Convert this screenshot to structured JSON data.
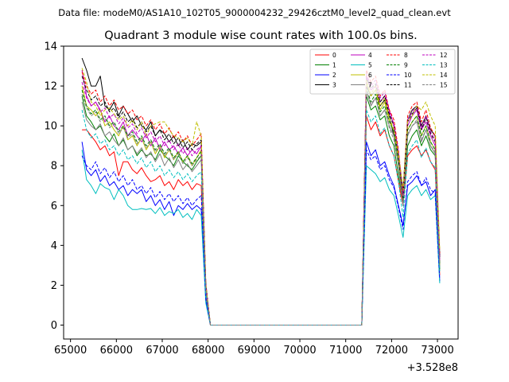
{
  "chart_data": {
    "type": "line",
    "suptitle": "Data file: modeM0/AS1A10_102T05_9000004232_29426cztM0_level2_quad_clean.evt",
    "title": "Quadrant 3 module wise count rates with 100.0s bins.",
    "xlabel": "",
    "ylabel": "",
    "x_offset_label": "+3.528e8",
    "xlim": [
      64850,
      73450
    ],
    "ylim": [
      -0.7,
      14
    ],
    "x_ticks": [
      65000,
      66000,
      67000,
      68000,
      69000,
      70000,
      71000,
      72000,
      73000
    ],
    "x_tick_labels": [
      "65000",
      "66000",
      "67000",
      "68000",
      "69000",
      "70000",
      "71000",
      "72000",
      "73000"
    ],
    "y_ticks": [
      0,
      2,
      4,
      6,
      8,
      10,
      12,
      14
    ],
    "y_tick_labels": [
      "0",
      "2",
      "4",
      "6",
      "8",
      "10",
      "12",
      "14"
    ],
    "legend_position": "top-right",
    "x_seg1": [
      65250,
      65350,
      65450,
      65550,
      65650,
      65750,
      65850,
      65950,
      66050,
      66150,
      66250,
      66350,
      66450,
      66550,
      66650,
      66750,
      66850,
      66950,
      67050,
      67150,
      67250,
      67350,
      67450,
      67550,
      67650,
      67750,
      67850,
      67950,
      68050
    ],
    "x_gap": [
      68150,
      71350
    ],
    "x_seg2": [
      71450,
      71550,
      71650,
      71750,
      71850,
      71950,
      72050,
      72150,
      72250,
      72350,
      72450,
      72550,
      72650,
      72750,
      72850,
      72950,
      73050
    ],
    "series": [
      {
        "name": "0",
        "color": "#ff0000",
        "dash": "solid",
        "seg1": [
          9.8,
          9.8,
          9.5,
          9.2,
          8.8,
          9.0,
          8.5,
          8.7,
          7.5,
          8.2,
          8.2,
          7.8,
          7.6,
          7.9,
          7.5,
          7.2,
          7.3,
          7.5,
          7.0,
          7.2,
          6.8,
          7.3,
          7.0,
          7.2,
          6.8,
          7.1,
          7.0,
          1.5,
          0
        ],
        "seg2": [
          10.5,
          9.8,
          10.2,
          9.5,
          9.8,
          9.0,
          8.5,
          7.2,
          6.0,
          8.5,
          8.8,
          9.0,
          8.5,
          8.8,
          8.2,
          7.8,
          2.5
        ]
      },
      {
        "name": "1",
        "color": "#008000",
        "dash": "solid",
        "seg1": [
          11.5,
          10.5,
          10.2,
          9.8,
          10.0,
          9.5,
          9.2,
          9.6,
          9.0,
          9.3,
          8.8,
          9.0,
          8.5,
          8.8,
          8.5,
          8.6,
          8.3,
          8.8,
          8.5,
          8.3,
          8.0,
          8.5,
          8.2,
          8.0,
          7.8,
          8.2,
          8.5,
          1.8,
          0
        ],
        "seg2": [
          11.5,
          10.8,
          11.0,
          10.3,
          10.5,
          9.5,
          9.0,
          7.5,
          6.2,
          9.0,
          9.5,
          9.8,
          9.0,
          9.5,
          8.8,
          8.5,
          2.8
        ]
      },
      {
        "name": "2",
        "color": "#0000ff",
        "dash": "solid",
        "seg1": [
          9.2,
          7.8,
          7.5,
          7.8,
          7.2,
          7.5,
          7.0,
          7.2,
          6.8,
          7.0,
          6.5,
          6.8,
          6.6,
          6.8,
          6.2,
          6.5,
          6.0,
          6.3,
          5.8,
          6.2,
          5.5,
          6.0,
          5.8,
          6.1,
          5.8,
          6.0,
          5.8,
          1.2,
          0
        ],
        "seg2": [
          9.2,
          8.5,
          8.8,
          8.0,
          8.2,
          7.5,
          7.0,
          6.0,
          5.0,
          7.0,
          7.2,
          7.5,
          7.0,
          7.2,
          6.5,
          6.8,
          2.2
        ]
      },
      {
        "name": "3",
        "color": "#000000",
        "dash": "solid",
        "seg1": [
          13.4,
          12.8,
          12.0,
          12.0,
          12.5,
          11.0,
          10.8,
          11.2,
          10.5,
          11.0,
          10.6,
          10.2,
          10.5,
          10.0,
          9.8,
          10.2,
          9.5,
          9.8,
          9.6,
          9.2,
          9.5,
          9.0,
          9.3,
          8.8,
          9.1,
          9.0,
          9.2,
          2.0,
          0
        ],
        "seg2": [
          12.0,
          11.5,
          11.8,
          11.0,
          11.3,
          10.5,
          9.5,
          8.5,
          6.8,
          10.3,
          10.8,
          11.0,
          10.0,
          10.5,
          9.8,
          9.5,
          3.5
        ]
      },
      {
        "name": "4",
        "color": "#bf00bf",
        "dash": "solid",
        "seg1": [
          12.8,
          11.5,
          11.0,
          11.2,
          10.8,
          10.2,
          10.5,
          10.0,
          9.8,
          10.2,
          9.5,
          9.8,
          9.5,
          9.2,
          9.6,
          9.0,
          9.4,
          8.8,
          9.2,
          8.8,
          9.0,
          8.6,
          8.9,
          8.5,
          8.8,
          8.6,
          9.0,
          1.9,
          0
        ],
        "seg2": [
          12.5,
          11.8,
          12.0,
          11.2,
          11.5,
          10.8,
          10.0,
          8.5,
          6.5,
          10.0,
          10.5,
          10.8,
          9.8,
          10.2,
          9.5,
          9.0,
          3.2
        ]
      },
      {
        "name": "5",
        "color": "#00bfbf",
        "dash": "solid",
        "seg1": [
          8.8,
          7.3,
          7.0,
          6.6,
          7.1,
          6.9,
          6.8,
          6.3,
          6.8,
          6.5,
          6.0,
          5.8,
          5.8,
          5.85,
          5.8,
          5.85,
          5.6,
          5.9,
          5.5,
          5.7,
          5.6,
          5.8,
          5.4,
          5.6,
          5.3,
          5.8,
          5.5,
          1.1,
          0
        ],
        "seg2": [
          8.0,
          7.8,
          7.6,
          7.2,
          7.4,
          6.8,
          6.5,
          5.5,
          4.4,
          6.5,
          6.8,
          7.0,
          6.5,
          6.8,
          6.3,
          6.5,
          2.1
        ]
      },
      {
        "name": "6",
        "color": "#bfbf00",
        "dash": "solid",
        "seg1": [
          12.0,
          11.0,
          10.8,
          10.5,
          10.8,
          10.0,
          10.2,
          9.8,
          9.5,
          10.0,
          9.3,
          9.5,
          9.0,
          9.4,
          8.8,
          9.2,
          8.6,
          9.0,
          8.4,
          8.8,
          8.3,
          8.7,
          8.2,
          8.5,
          8.0,
          8.4,
          8.8,
          1.8,
          0
        ],
        "seg2": [
          12.2,
          11.5,
          11.8,
          10.8,
          11.2,
          10.2,
          9.8,
          8.2,
          6.3,
          9.8,
          10.2,
          10.5,
          9.5,
          10.0,
          9.2,
          8.8,
          3.0
        ]
      },
      {
        "name": "7",
        "color": "#808080",
        "dash": "solid",
        "seg1": [
          11.2,
          10.3,
          10.0,
          9.8,
          10.1,
          9.5,
          9.7,
          9.3,
          9.0,
          9.4,
          8.8,
          9.0,
          8.6,
          8.9,
          8.4,
          8.7,
          8.2,
          8.6,
          8.0,
          8.4,
          7.9,
          8.3,
          7.8,
          8.1,
          7.7,
          8.0,
          8.3,
          1.7,
          0
        ],
        "seg2": [
          11.8,
          11.0,
          11.4,
          10.5,
          10.8,
          10.0,
          9.5,
          8.0,
          6.0,
          9.5,
          10.0,
          10.2,
          9.2,
          9.8,
          9.0,
          8.6,
          2.9
        ]
      },
      {
        "name": "8",
        "color": "#ff0000",
        "dash": "dashed",
        "seg1": [
          12.7,
          12.0,
          11.6,
          11.8,
          11.2,
          11.5,
          11.0,
          11.3,
          10.8,
          11.0,
          10.6,
          10.8,
          10.3,
          10.5,
          10.0,
          10.3,
          9.8,
          10.1,
          9.6,
          9.9,
          9.4,
          9.7,
          9.2,
          9.5,
          9.0,
          9.3,
          9.6,
          2.1,
          0
        ],
        "seg2": [
          12.8,
          12.2,
          12.5,
          11.5,
          11.8,
          10.8,
          10.3,
          8.8,
          6.6,
          10.5,
          11.0,
          11.2,
          10.2,
          10.8,
          9.9,
          9.5,
          3.6
        ]
      },
      {
        "name": "9",
        "color": "#008000",
        "dash": "dashed",
        "seg1": [
          11.8,
          11.0,
          10.6,
          10.8,
          10.3,
          10.5,
          10.0,
          10.2,
          9.7,
          10.0,
          9.5,
          9.7,
          9.2,
          9.5,
          9.0,
          9.3,
          8.8,
          9.1,
          8.6,
          8.9,
          8.4,
          8.7,
          8.2,
          8.5,
          8.1,
          8.4,
          8.7,
          1.8,
          0
        ],
        "seg2": [
          11.9,
          11.2,
          11.6,
          10.7,
          11.0,
          10.2,
          9.7,
          8.3,
          6.2,
          9.8,
          10.2,
          10.5,
          9.5,
          10.0,
          9.2,
          8.8,
          3.1
        ]
      },
      {
        "name": "10",
        "color": "#0000ff",
        "dash": "dashed",
        "seg1": [
          8.5,
          8.0,
          7.8,
          8.2,
          7.6,
          7.9,
          7.4,
          7.7,
          7.2,
          7.5,
          7.0,
          7.3,
          6.8,
          7.0,
          6.6,
          6.9,
          6.4,
          6.7,
          6.3,
          6.6,
          6.2,
          6.5,
          6.1,
          6.4,
          6.0,
          6.3,
          6.5,
          1.3,
          0
        ],
        "seg2": [
          8.8,
          8.3,
          8.5,
          7.8,
          8.0,
          7.3,
          6.9,
          5.9,
          4.8,
          7.2,
          7.5,
          7.7,
          7.0,
          7.4,
          6.8,
          6.6,
          2.3
        ]
      },
      {
        "name": "11",
        "color": "#000000",
        "dash": "dashed",
        "seg1": [
          12.5,
          11.8,
          11.3,
          11.5,
          11.0,
          11.2,
          10.7,
          10.9,
          10.4,
          10.7,
          10.2,
          10.4,
          9.9,
          10.2,
          9.7,
          10.0,
          9.5,
          9.8,
          9.3,
          9.6,
          9.1,
          9.4,
          8.9,
          9.2,
          8.8,
          9.1,
          9.3,
          2.0,
          0
        ],
        "seg2": [
          12.4,
          11.9,
          12.1,
          11.2,
          11.5,
          10.6,
          10.0,
          8.6,
          6.4,
          10.2,
          10.6,
          10.9,
          9.8,
          10.4,
          9.6,
          9.2,
          3.4
        ]
      },
      {
        "name": "12",
        "color": "#bf00bf",
        "dash": "dashed",
        "seg1": [
          12.2,
          11.4,
          11.0,
          11.2,
          10.7,
          10.9,
          10.4,
          10.6,
          10.1,
          10.4,
          9.9,
          10.1,
          9.6,
          9.9,
          9.4,
          9.7,
          9.2,
          9.5,
          9.0,
          9.3,
          8.8,
          9.1,
          8.6,
          8.9,
          8.5,
          8.8,
          9.0,
          1.9,
          0
        ],
        "seg2": [
          12.6,
          12.0,
          12.3,
          11.4,
          11.7,
          10.7,
          10.1,
          8.7,
          6.5,
          10.3,
          10.7,
          11.0,
          9.9,
          10.5,
          9.7,
          9.3,
          3.3
        ]
      },
      {
        "name": "13",
        "color": "#00bfbf",
        "dash": "dashed",
        "seg1": [
          10.8,
          9.8,
          9.4,
          9.6,
          9.1,
          9.3,
          8.8,
          9.0,
          8.5,
          8.8,
          8.3,
          8.5,
          8.1,
          8.4,
          7.9,
          8.2,
          7.7,
          8.0,
          7.5,
          7.8,
          7.4,
          7.7,
          7.3,
          7.6,
          7.2,
          7.5,
          7.7,
          1.6,
          0
        ],
        "seg2": [
          10.8,
          10.2,
          10.5,
          9.6,
          9.9,
          9.0,
          8.5,
          7.2,
          5.4,
          8.6,
          9.0,
          9.3,
          8.4,
          8.9,
          8.2,
          7.9,
          2.7
        ]
      },
      {
        "name": "14",
        "color": "#bfbf00",
        "dash": "dashed",
        "seg1": [
          12.9,
          12.2,
          11.2,
          11.0,
          10.5,
          10.8,
          10.9,
          10.6,
          10.3,
          10.5,
          10.0,
          10.3,
          9.8,
          10.2,
          9.5,
          10.0,
          10.1,
          10.2,
          10.2,
          9.8,
          9.5,
          9.4,
          9.2,
          9.4,
          9.0,
          10.2,
          9.5,
          2.0,
          0
        ],
        "seg2": [
          12.3,
          11.6,
          12.0,
          11.0,
          11.4,
          10.4,
          9.8,
          8.6,
          6.8,
          10.2,
          10.5,
          11.0,
          10.8,
          11.2,
          10.5,
          10.0,
          3.8
        ]
      },
      {
        "name": "15",
        "color": "#808080",
        "dash": "dashed",
        "seg1": [
          11.6,
          10.9,
          10.5,
          10.7,
          10.2,
          10.4,
          9.9,
          10.1,
          9.6,
          9.9,
          9.4,
          9.6,
          9.1,
          9.4,
          8.9,
          9.2,
          8.7,
          9.0,
          8.5,
          8.8,
          8.3,
          8.6,
          8.1,
          8.4,
          8.0,
          8.3,
          8.5,
          1.8,
          0
        ],
        "seg2": [
          11.7,
          11.1,
          11.4,
          10.5,
          10.8,
          9.9,
          9.3,
          8.0,
          6.0,
          9.6,
          10.0,
          10.3,
          9.3,
          9.8,
          9.0,
          8.7,
          3.0
        ]
      }
    ]
  }
}
